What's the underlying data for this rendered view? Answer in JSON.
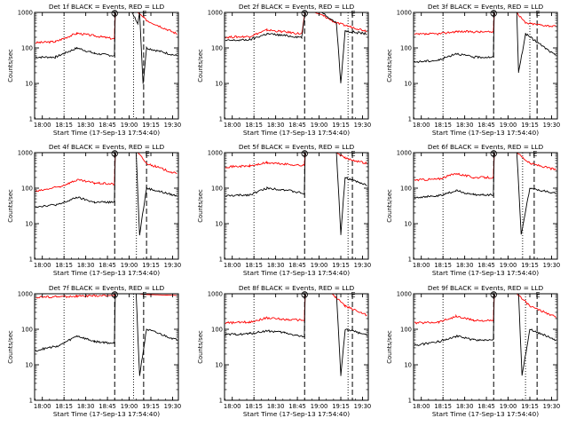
{
  "colors": {
    "events": "#000000",
    "lld": "#ff0000",
    "axis": "#000000",
    "background": "#ffffff"
  },
  "chart_data": {
    "type": "line",
    "scale": "log",
    "ylim": [
      1,
      1000
    ],
    "xlim": [
      "17:54:40",
      "19:34"
    ],
    "y_ticks": [
      "1",
      "10",
      "100",
      "1000"
    ],
    "x_ticks": [
      "18:00",
      "18:15",
      "18:30",
      "18:45",
      "19:00",
      "19:15",
      "19:30"
    ],
    "ylabel": "Counts/sec",
    "xlabel": "Start Time (17-Sep-13 17:54:40)",
    "marker_s": "S",
    "marker_e": "E",
    "panels": [
      {
        "title": "Det 1f BLACK = Events, RED = LLD",
        "dotted": [
          "18:15",
          "19:03"
        ],
        "dashed": [
          "18:50",
          "19:10"
        ],
        "events": [
          [
            17.92,
            55
          ],
          [
            18.15,
            55
          ],
          [
            18.4,
            100
          ],
          [
            18.6,
            70
          ],
          [
            18.83,
            60
          ],
          [
            18.84,
            1000
          ],
          [
            19.03,
            1000
          ],
          [
            19.1,
            500
          ],
          [
            19.12,
            1000
          ],
          [
            19.16,
            10
          ],
          [
            19.2,
            100
          ],
          [
            19.55,
            60
          ]
        ],
        "lld": [
          [
            17.92,
            140
          ],
          [
            18.15,
            150
          ],
          [
            18.4,
            260
          ],
          [
            18.6,
            220
          ],
          [
            18.83,
            180
          ],
          [
            18.84,
            1000
          ],
          [
            19.1,
            1000
          ],
          [
            19.2,
            600
          ],
          [
            19.55,
            250
          ]
        ]
      },
      {
        "title": "Det 2f BLACK = Events, RED = LLD",
        "dotted": [
          "18:15",
          "19:20"
        ],
        "dashed": [
          "18:50",
          "19:23"
        ],
        "events": [
          [
            17.92,
            160
          ],
          [
            18.2,
            170
          ],
          [
            18.4,
            250
          ],
          [
            18.8,
            200
          ],
          [
            18.84,
            1000
          ],
          [
            19.03,
            1000
          ],
          [
            19.2,
            500
          ],
          [
            19.25,
            10
          ],
          [
            19.3,
            300
          ],
          [
            19.55,
            250
          ]
        ],
        "lld": [
          [
            17.92,
            200
          ],
          [
            18.2,
            210
          ],
          [
            18.4,
            320
          ],
          [
            18.8,
            250
          ],
          [
            18.84,
            1000
          ],
          [
            18.95,
            1000
          ],
          [
            19.05,
            800
          ],
          [
            19.2,
            500
          ],
          [
            19.55,
            300
          ]
        ]
      },
      {
        "title": "Det 3f BLACK = Events, RED = LLD",
        "dotted": [
          "18:15",
          "19:15"
        ],
        "dashed": [
          "18:50",
          "19:20"
        ],
        "events": [
          [
            17.92,
            40
          ],
          [
            18.2,
            45
          ],
          [
            18.4,
            70
          ],
          [
            18.6,
            55
          ],
          [
            18.83,
            55
          ],
          [
            18.84,
            1000
          ],
          [
            19.1,
            1000
          ],
          [
            19.12,
            20
          ],
          [
            19.2,
            250
          ],
          [
            19.55,
            60
          ]
        ],
        "lld": [
          [
            17.92,
            240
          ],
          [
            18.2,
            250
          ],
          [
            18.4,
            290
          ],
          [
            18.83,
            280
          ],
          [
            18.84,
            1000
          ],
          [
            19.1,
            1000
          ],
          [
            19.2,
            500
          ],
          [
            19.55,
            400
          ]
        ]
      },
      {
        "title": "Det 4f BLACK = Events, RED = LLD",
        "dotted": [
          "18:15",
          "19:05"
        ],
        "dashed": [
          "18:50",
          "19:12"
        ],
        "events": [
          [
            17.92,
            30
          ],
          [
            18.2,
            35
          ],
          [
            18.4,
            55
          ],
          [
            18.6,
            40
          ],
          [
            18.83,
            40
          ],
          [
            18.84,
            1000
          ],
          [
            19.08,
            1000
          ],
          [
            19.12,
            5
          ],
          [
            19.2,
            100
          ],
          [
            19.55,
            60
          ]
        ],
        "lld": [
          [
            17.92,
            80
          ],
          [
            18.2,
            110
          ],
          [
            18.4,
            170
          ],
          [
            18.6,
            140
          ],
          [
            18.83,
            130
          ],
          [
            18.84,
            1000
          ],
          [
            19.1,
            1000
          ],
          [
            19.2,
            500
          ],
          [
            19.55,
            250
          ]
        ]
      },
      {
        "title": "Det 5f BLACK = Events, RED = LLD",
        "dotted": [
          "18:15",
          "19:20"
        ],
        "dashed": [
          "18:50",
          "19:23"
        ],
        "events": [
          [
            17.92,
            60
          ],
          [
            18.2,
            65
          ],
          [
            18.4,
            100
          ],
          [
            18.6,
            90
          ],
          [
            18.83,
            70
          ],
          [
            18.84,
            1000
          ],
          [
            19.2,
            1000
          ],
          [
            19.25,
            5
          ],
          [
            19.3,
            200
          ],
          [
            19.55,
            120
          ]
        ],
        "lld": [
          [
            17.92,
            400
          ],
          [
            18.2,
            420
          ],
          [
            18.4,
            520
          ],
          [
            18.83,
            430
          ],
          [
            18.84,
            1000
          ],
          [
            19.2,
            1000
          ],
          [
            19.3,
            700
          ],
          [
            19.55,
            500
          ]
        ]
      },
      {
        "title": "Det 6f BLACK = Events, RED = LLD",
        "dotted": [
          "18:15",
          "19:10"
        ],
        "dashed": [
          "18:50",
          "19:18"
        ],
        "events": [
          [
            17.92,
            55
          ],
          [
            18.2,
            60
          ],
          [
            18.4,
            85
          ],
          [
            18.6,
            65
          ],
          [
            18.83,
            65
          ],
          [
            18.84,
            1000
          ],
          [
            19.1,
            1000
          ],
          [
            19.15,
            5
          ],
          [
            19.25,
            100
          ],
          [
            19.55,
            70
          ]
        ],
        "lld": [
          [
            17.92,
            170
          ],
          [
            18.2,
            180
          ],
          [
            18.4,
            260
          ],
          [
            18.6,
            200
          ],
          [
            18.83,
            200
          ],
          [
            18.84,
            1000
          ],
          [
            19.1,
            1000
          ],
          [
            19.25,
            500
          ],
          [
            19.55,
            330
          ]
        ]
      },
      {
        "title": "Det 7f BLACK = Events, RED = LLD",
        "dotted": [
          "18:15",
          "19:03"
        ],
        "dashed": [
          "18:50",
          "19:10"
        ],
        "events": [
          [
            17.92,
            25
          ],
          [
            18.2,
            35
          ],
          [
            18.4,
            65
          ],
          [
            18.6,
            45
          ],
          [
            18.83,
            40
          ],
          [
            18.84,
            1000
          ],
          [
            19.08,
            1000
          ],
          [
            19.12,
            5
          ],
          [
            19.2,
            100
          ],
          [
            19.55,
            50
          ]
        ],
        "lld": [
          [
            17.92,
            800
          ],
          [
            18.4,
            850
          ],
          [
            18.83,
            900
          ],
          [
            18.84,
            1000
          ],
          [
            19.1,
            1000
          ],
          [
            19.2,
            950
          ],
          [
            19.55,
            900
          ]
        ]
      },
      {
        "title": "Det 8f BLACK = Events, RED = LLD",
        "dotted": [
          "18:15",
          "19:20"
        ],
        "dashed": [
          "18:50",
          "19:23"
        ],
        "events": [
          [
            17.92,
            70
          ],
          [
            18.2,
            75
          ],
          [
            18.4,
            90
          ],
          [
            18.6,
            80
          ],
          [
            18.83,
            60
          ],
          [
            18.84,
            1000
          ],
          [
            19.2,
            1000
          ],
          [
            19.25,
            5
          ],
          [
            19.3,
            100
          ],
          [
            19.55,
            70
          ]
        ],
        "lld": [
          [
            17.92,
            150
          ],
          [
            18.2,
            160
          ],
          [
            18.4,
            210
          ],
          [
            18.6,
            190
          ],
          [
            18.83,
            180
          ],
          [
            18.84,
            1000
          ],
          [
            19.15,
            1000
          ],
          [
            19.3,
            450
          ],
          [
            19.55,
            250
          ]
        ]
      },
      {
        "title": "Det 9f BLACK = Events, RED = LLD",
        "dotted": [
          "18:15",
          "19:12"
        ],
        "dashed": [
          "18:50",
          "19:20"
        ],
        "events": [
          [
            17.92,
            35
          ],
          [
            18.2,
            45
          ],
          [
            18.4,
            65
          ],
          [
            18.6,
            50
          ],
          [
            18.83,
            50
          ],
          [
            18.84,
            1000
          ],
          [
            19.12,
            1000
          ],
          [
            19.16,
            5
          ],
          [
            19.25,
            100
          ],
          [
            19.55,
            50
          ]
        ],
        "lld": [
          [
            17.92,
            150
          ],
          [
            18.2,
            160
          ],
          [
            18.4,
            230
          ],
          [
            18.6,
            180
          ],
          [
            18.83,
            170
          ],
          [
            18.84,
            1000
          ],
          [
            19.1,
            1000
          ],
          [
            19.25,
            450
          ],
          [
            19.55,
            220
          ]
        ]
      }
    ]
  }
}
